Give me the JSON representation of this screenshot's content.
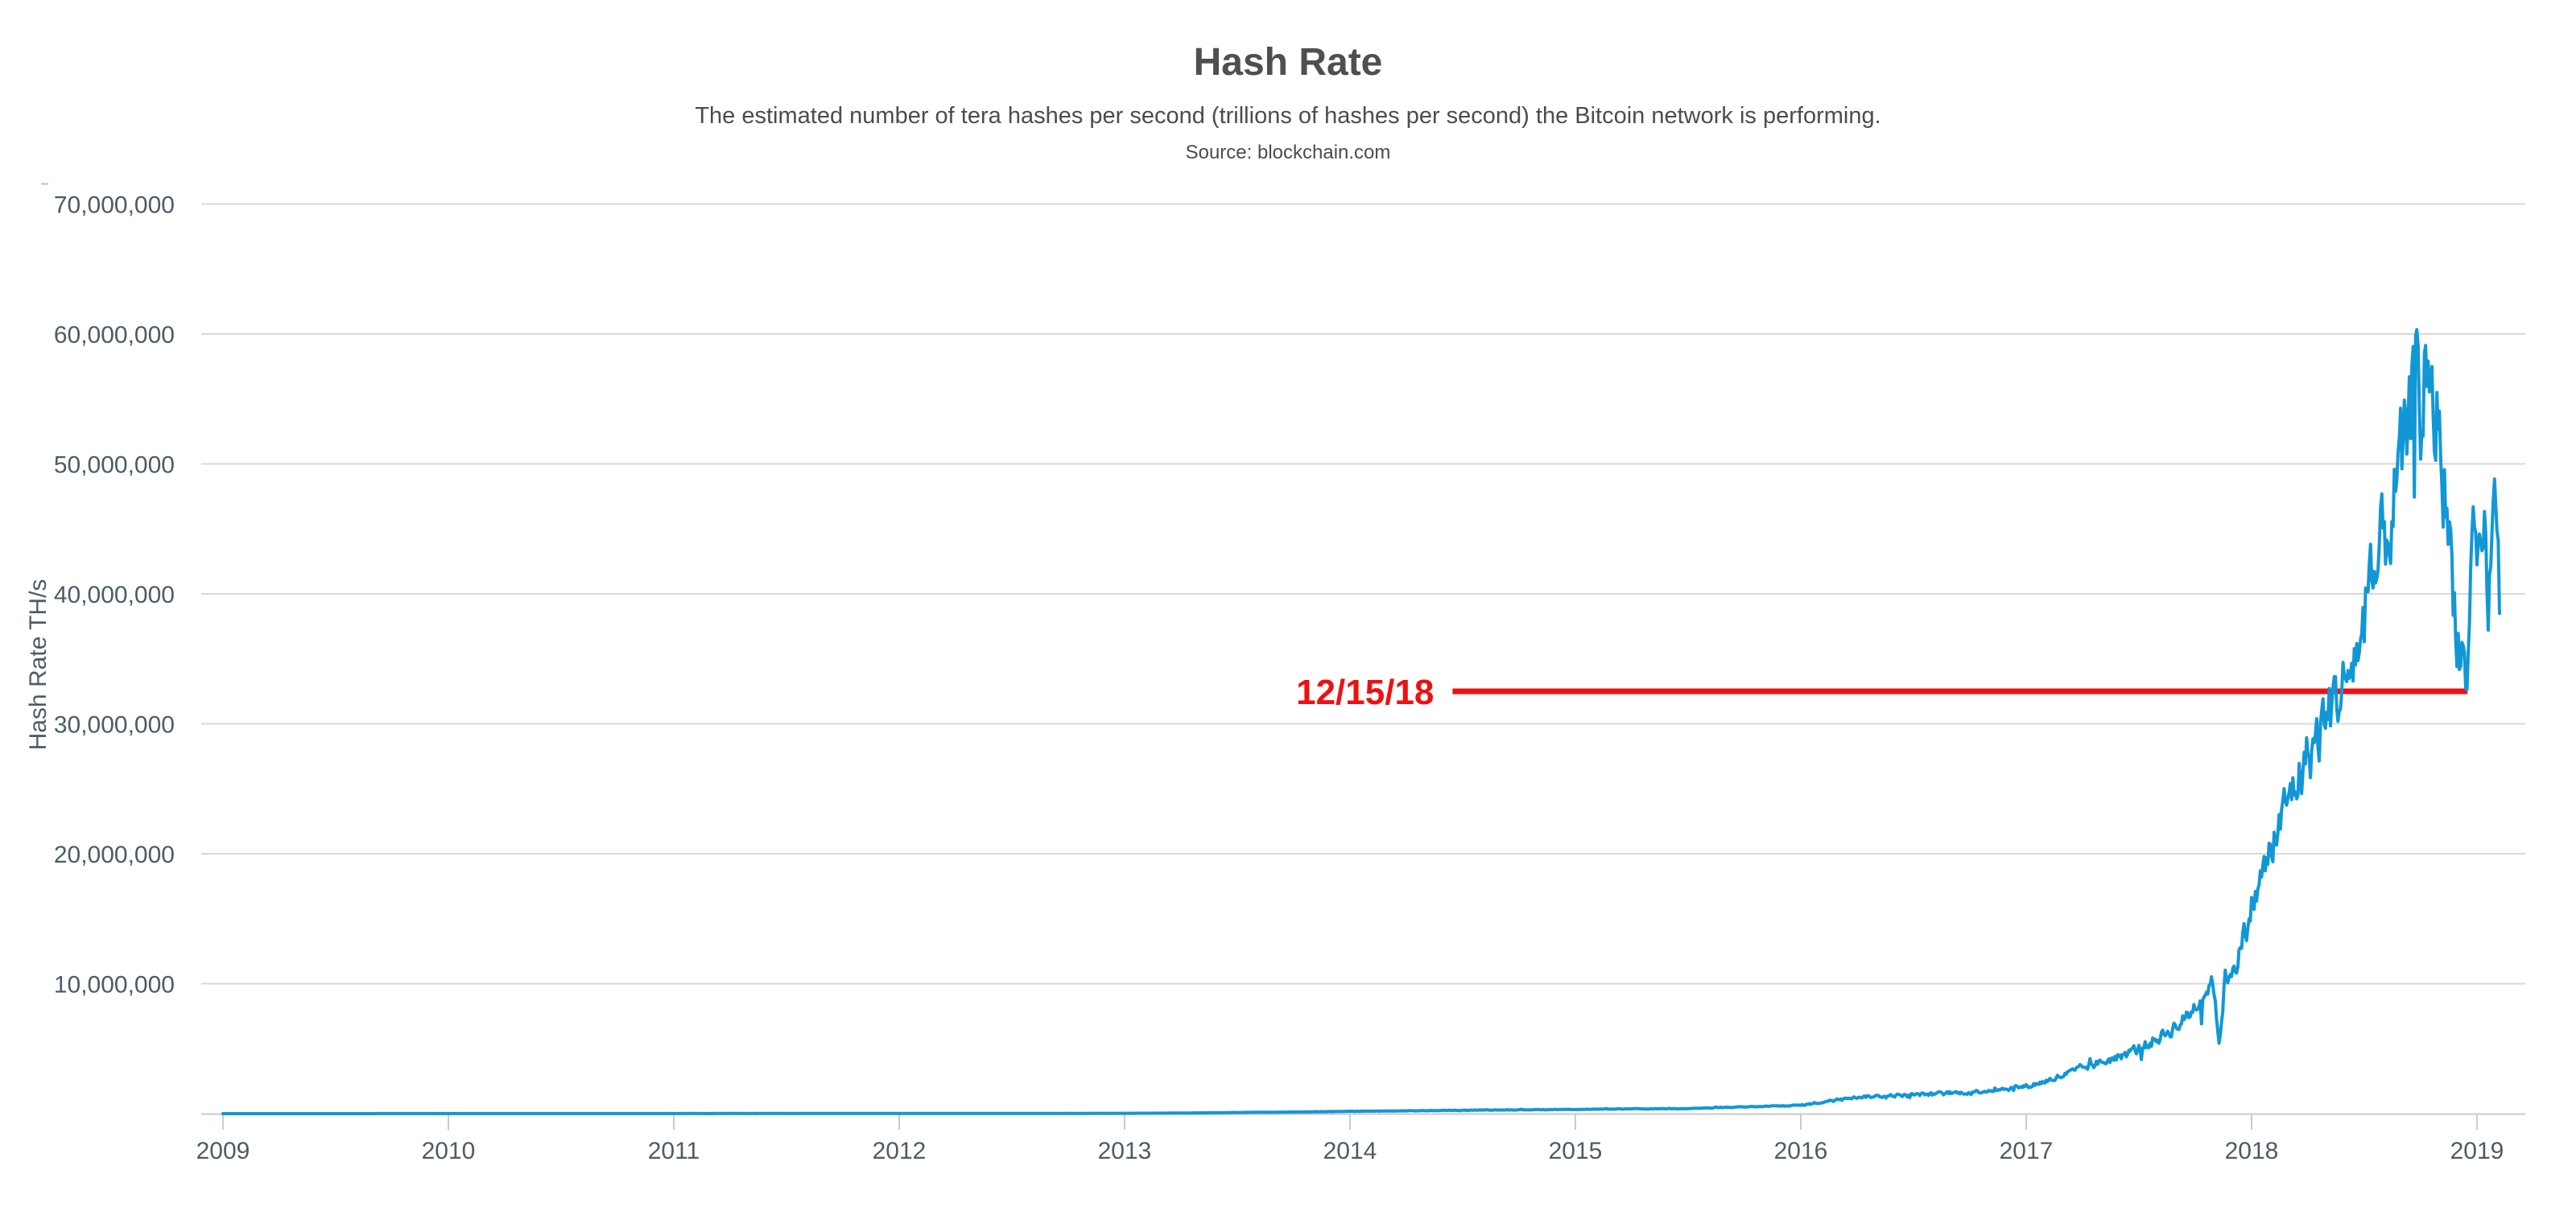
{
  "header": {
    "title": "Hash Rate",
    "subtitle": "The estimated number of tera hashes per second (trillions of hashes per second) the Bitcoin network is performing.",
    "source": "Source: blockchain.com"
  },
  "annotation": {
    "label": "12/15/18",
    "value_th_s": 32500000,
    "line_start_year": 2014.455,
    "line_end_year": 2018.958,
    "color": "#ed1111"
  },
  "colors": {
    "series_line": "#1297d6",
    "annotation_red": "#ed1111",
    "gridline": "#d8d8d8",
    "axis_line": "#c9c9c9",
    "tick_mark": "#c3ccd9",
    "heading_text": "#4f4f4f",
    "tick_text": "#4e5b66"
  },
  "chart_data": {
    "type": "line",
    "title": "Hash Rate",
    "xlabel": "",
    "ylabel": "Hash Rate TH/s",
    "grid": true,
    "legend": false,
    "xlim": [
      2009,
      2019.15
    ],
    "ylim": [
      0,
      77000000
    ],
    "x_ticks": [
      {
        "value": 2009,
        "label": "2009"
      },
      {
        "value": 2010,
        "label": "2010"
      },
      {
        "value": 2011,
        "label": "2011"
      },
      {
        "value": 2012,
        "label": "2012"
      },
      {
        "value": 2013,
        "label": "2013"
      },
      {
        "value": 2014,
        "label": "2014"
      },
      {
        "value": 2015,
        "label": "2015"
      },
      {
        "value": 2016,
        "label": "2016"
      },
      {
        "value": 2017,
        "label": "2017"
      },
      {
        "value": 2018,
        "label": "2018"
      },
      {
        "value": 2019,
        "label": "2019"
      }
    ],
    "y_ticks": [
      {
        "value": 10000000,
        "label": "10,000,000"
      },
      {
        "value": 20000000,
        "label": "20,000,000"
      },
      {
        "value": 30000000,
        "label": "30,000,000"
      },
      {
        "value": 40000000,
        "label": "40,000,000"
      },
      {
        "value": 50000000,
        "label": "50,000,000"
      },
      {
        "value": 60000000,
        "label": "60,000,000"
      },
      {
        "value": 70000000,
        "label": "70,000,000"
      }
    ],
    "series": [
      {
        "name": "Hash Rate (TH/s)",
        "color": "#1297d6",
        "points": [
          [
            2009.0,
            800
          ],
          [
            2010.0,
            6000
          ],
          [
            2011.0,
            9000
          ],
          [
            2012.0,
            11000
          ],
          [
            2013.0,
            25000
          ],
          [
            2013.5,
            90000
          ],
          [
            2014.0,
            180000
          ],
          [
            2014.6,
            280000
          ],
          [
            2015.0,
            330000
          ],
          [
            2015.5,
            400000
          ],
          [
            2016.0,
            650000
          ],
          [
            2016.2,
            1250000
          ],
          [
            2016.5,
            1450000
          ],
          [
            2016.75,
            1650000
          ],
          [
            2017.0,
            2100000
          ],
          [
            2017.25,
            3500000
          ],
          [
            2017.5,
            5000000
          ],
          [
            2017.7,
            7200000
          ],
          [
            2017.83,
            10500000
          ],
          [
            2017.855,
            5400000
          ],
          [
            2017.88,
            10200000
          ],
          [
            2017.95,
            12500000
          ],
          [
            2018.0,
            16000000
          ],
          [
            2018.08,
            20000000
          ],
          [
            2018.17,
            24500000
          ],
          [
            2018.25,
            27500000
          ],
          [
            2018.33,
            30500000
          ],
          [
            2018.42,
            33500000
          ],
          [
            2018.5,
            37500000
          ],
          [
            2018.58,
            43500000
          ],
          [
            2018.65,
            48500000
          ],
          [
            2018.7,
            52500000
          ],
          [
            2018.735,
            60300000
          ],
          [
            2018.75,
            52000000
          ],
          [
            2018.77,
            58500000
          ],
          [
            2018.8,
            53500000
          ],
          [
            2018.83,
            54000000
          ],
          [
            2018.86,
            47500000
          ],
          [
            2018.89,
            41500000
          ],
          [
            2018.92,
            36500000
          ],
          [
            2018.94,
            35000000
          ],
          [
            2018.955,
            32400000
          ],
          [
            2018.97,
            39000000
          ],
          [
            2018.99,
            43500000
          ],
          [
            2019.01,
            40500000
          ],
          [
            2019.03,
            45500000
          ],
          [
            2019.05,
            40000000
          ],
          [
            2019.07,
            44000000
          ],
          [
            2019.088,
            47600000
          ],
          [
            2019.1,
            39500000
          ]
        ]
      }
    ]
  }
}
